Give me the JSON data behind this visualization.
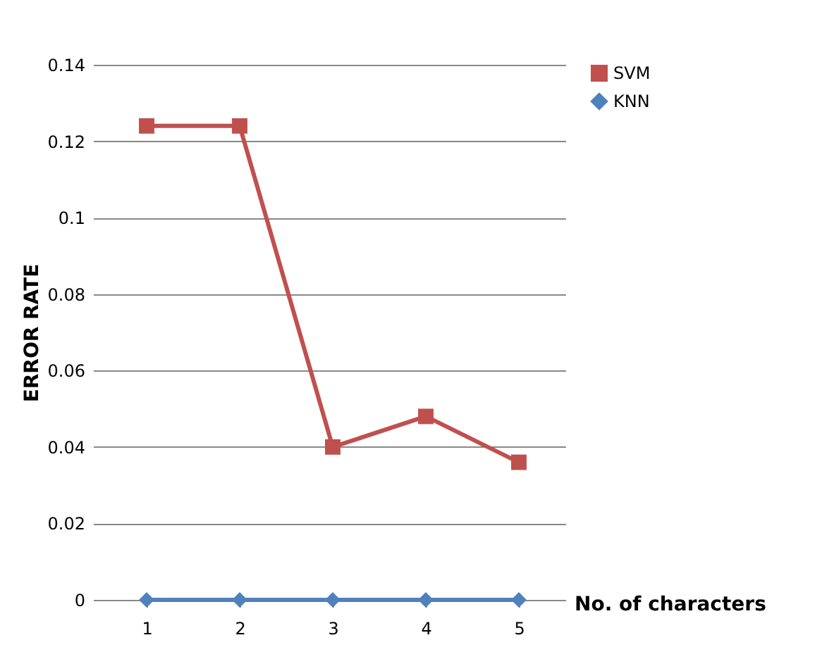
{
  "chart_data": {
    "type": "line",
    "xlabel": "No. of characters",
    "ylabel": "ERROR RATE",
    "categories": [
      "1",
      "2",
      "3",
      "4",
      "5"
    ],
    "series": [
      {
        "name": "SVM",
        "color": "#c0504d",
        "marker": "square",
        "values": [
          0.124,
          0.124,
          0.04,
          0.048,
          0.036
        ]
      },
      {
        "name": "KNN",
        "color": "#4f81bd",
        "marker": "diamond",
        "values": [
          0,
          0,
          0,
          0,
          0
        ]
      }
    ],
    "ylim": [
      0,
      0.14
    ],
    "yticks": [
      0,
      0.02,
      0.04,
      0.06,
      0.08,
      0.1,
      0.12,
      0.14
    ],
    "grid": "y",
    "legend": "right"
  }
}
